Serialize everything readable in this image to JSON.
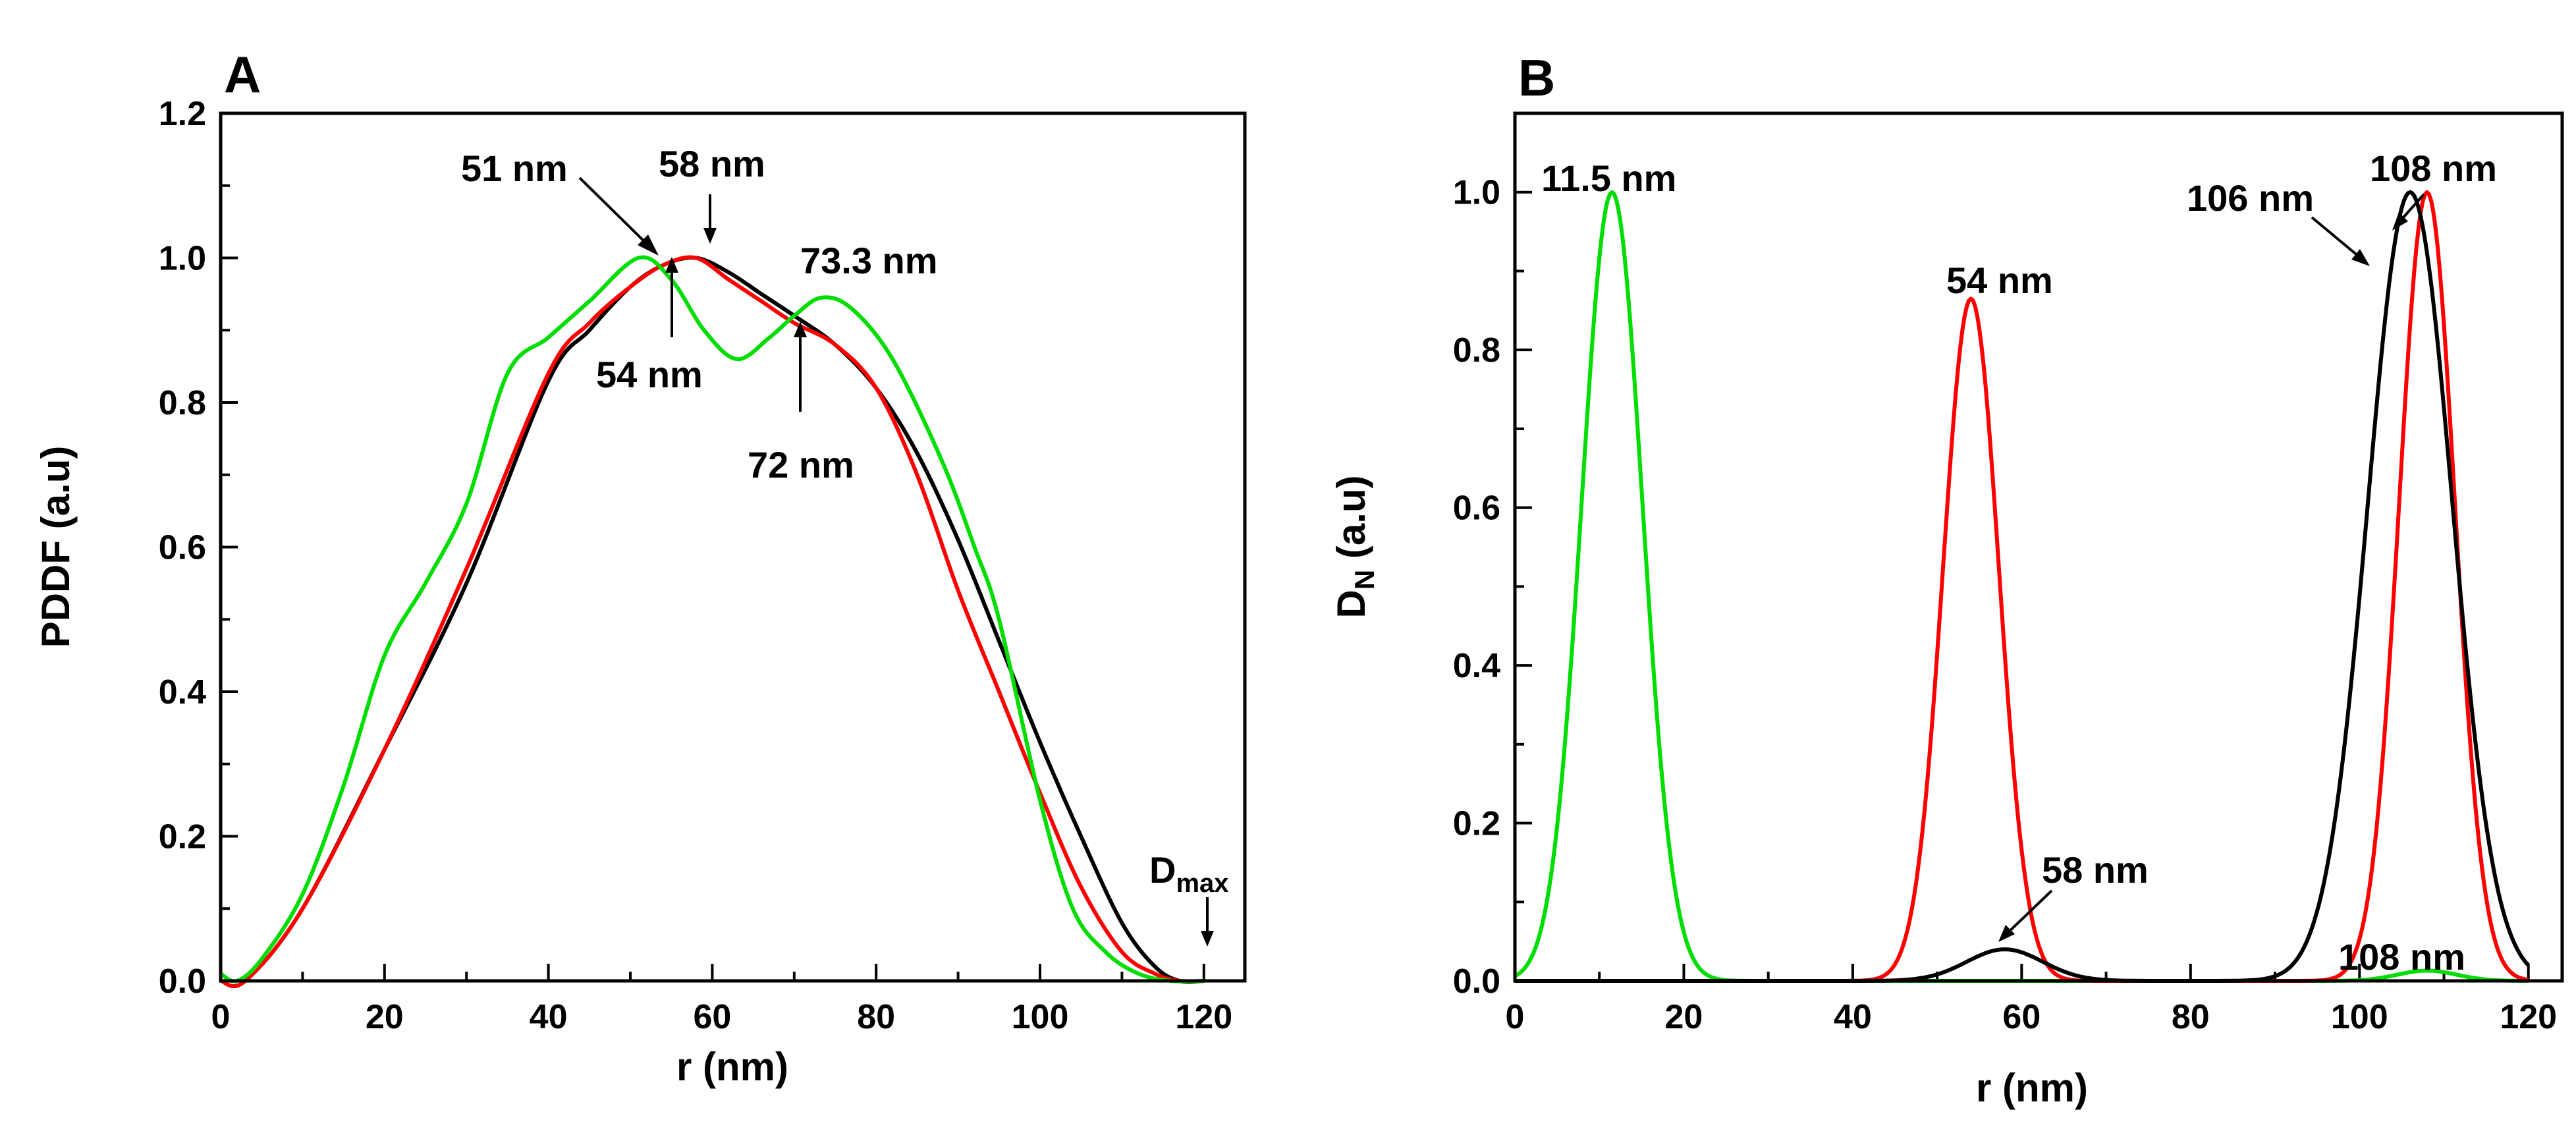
{
  "chart_data": [
    {
      "panel": "A",
      "type": "line",
      "xlabel": "r (nm)",
      "ylabel": "PDDF (a.u)",
      "xlim": [
        0,
        125
      ],
      "ylim": [
        0,
        1.2
      ],
      "xticks": [
        0,
        20,
        40,
        60,
        80,
        100,
        120
      ],
      "yticks": [
        0.0,
        0.2,
        0.4,
        0.6,
        0.8,
        1.0,
        1.2
      ],
      "xtick_labels": [
        "0",
        "20",
        "40",
        "60",
        "80",
        "100",
        "120"
      ],
      "ytick_labels": [
        "0.0",
        "0.2",
        "0.4",
        "0.6",
        "0.8",
        "1.0",
        "1.2"
      ],
      "series": [
        {
          "name": "black",
          "color": "#000000",
          "x": [
            0,
            3,
            10,
            20,
            30,
            40,
            45,
            50,
            54,
            58,
            62,
            66,
            70,
            75,
            80,
            85,
            90,
            95,
            100,
            105,
            110,
            114,
            117,
            120
          ],
          "y": [
            0,
            0,
            0.1,
            0.32,
            0.55,
            0.83,
            0.9,
            0.96,
            0.99,
            1.0,
            0.98,
            0.95,
            0.92,
            0.88,
            0.82,
            0.73,
            0.61,
            0.47,
            0.33,
            0.2,
            0.08,
            0.02,
            0,
            0
          ]
        },
        {
          "name": "red",
          "color": "#ff0000",
          "x": [
            0,
            3,
            10,
            20,
            30,
            40,
            45,
            50,
            54,
            58,
            62,
            66,
            70,
            75,
            80,
            85,
            90,
            95,
            100,
            105,
            110,
            114,
            117,
            120
          ],
          "y": [
            0,
            0,
            0.1,
            0.32,
            0.57,
            0.84,
            0.91,
            0.96,
            0.99,
            1.0,
            0.97,
            0.94,
            0.91,
            0.88,
            0.82,
            0.7,
            0.54,
            0.4,
            0.26,
            0.13,
            0.04,
            0.01,
            0,
            0
          ]
        },
        {
          "name": "green",
          "color": "#00dd00",
          "x": [
            0,
            2,
            5,
            10,
            15,
            20,
            25,
            30,
            35,
            40,
            45,
            51,
            55,
            59,
            63,
            67,
            70,
            73.3,
            77,
            82,
            88,
            92,
            95,
            100,
            104,
            108,
            112,
            116,
            120
          ],
          "y": [
            0.01,
            0,
            0.03,
            0.12,
            0.27,
            0.45,
            0.55,
            0.66,
            0.84,
            0.89,
            0.94,
            1.0,
            0.97,
            0.9,
            0.86,
            0.89,
            0.92,
            0.945,
            0.93,
            0.86,
            0.72,
            0.6,
            0.5,
            0.25,
            0.1,
            0.04,
            0.01,
            0,
            0
          ]
        }
      ],
      "annotations": [
        {
          "text": "51 nm",
          "x": 51,
          "y": 1.0
        },
        {
          "text": "58 nm",
          "x": 58,
          "y": 1.0
        },
        {
          "text": "54 nm",
          "x": 54,
          "y": 0.99
        },
        {
          "text": "73.3 nm",
          "x": 73.3,
          "y": 0.945
        },
        {
          "text": "72 nm",
          "x": 72,
          "y": 0.92
        }
      ],
      "dmax": {
        "label": "D",
        "sub": "max",
        "x": 120
      }
    },
    {
      "panel": "B",
      "type": "line",
      "xlabel": "r (nm)",
      "ylabel_main": "D",
      "ylabel_sub": "N",
      "ylabel_tail": " (a.u)",
      "xlim": [
        0,
        124
      ],
      "ylim": [
        0,
        1.1
      ],
      "xticks": [
        0,
        20,
        40,
        60,
        80,
        100,
        120
      ],
      "yticks": [
        0.0,
        0.2,
        0.4,
        0.6,
        0.8,
        1.0
      ],
      "xtick_labels": [
        "0",
        "20",
        "40",
        "60",
        "80",
        "100",
        "120"
      ],
      "ytick_labels": [
        "0.0",
        "0.2",
        "0.4",
        "0.6",
        "0.8",
        "1.0"
      ],
      "series": [
        {
          "name": "green",
          "color": "#00dd00",
          "peaks": [
            {
              "mu": 11.5,
              "sigma": 3.6,
              "amp": 1.0
            },
            {
              "mu": 108,
              "sigma": 3.5,
              "amp": 0.013
            }
          ]
        },
        {
          "name": "red",
          "color": "#ff0000",
          "peaks": [
            {
              "mu": 54,
              "sigma": 3.3,
              "amp": 0.865
            },
            {
              "mu": 108,
              "sigma": 3.3,
              "amp": 1.0
            }
          ]
        },
        {
          "name": "black",
          "color": "#000000",
          "peaks": [
            {
              "mu": 58,
              "sigma": 4.5,
              "amp": 0.04
            },
            {
              "mu": 106,
              "sigma": 5.0,
              "amp": 1.0
            }
          ]
        }
      ],
      "annotations": [
        {
          "text": "11.5 nm",
          "x": 11.5,
          "y": 1.0
        },
        {
          "text": "54 nm",
          "x": 54,
          "y": 0.865
        },
        {
          "text": "106 nm",
          "x": 106,
          "y": 1.0
        },
        {
          "text": "108 nm",
          "x": 108,
          "y": 1.0
        },
        {
          "text": "58 nm",
          "x": 58,
          "y": 0.04
        },
        {
          "text": "108 nm",
          "x": 108,
          "y": 0.013
        }
      ]
    }
  ]
}
